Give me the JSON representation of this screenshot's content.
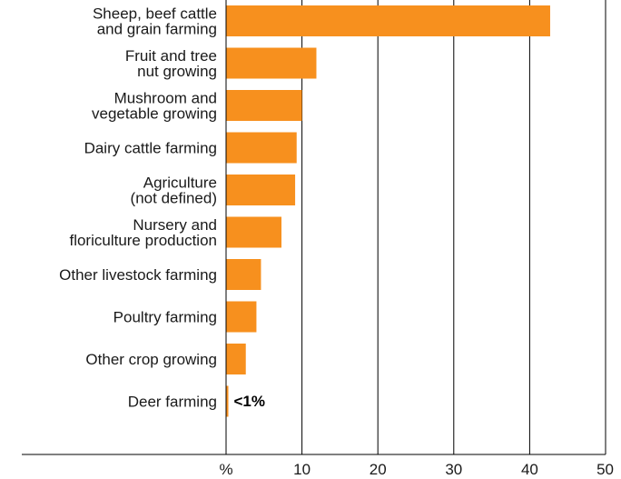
{
  "chart_data": {
    "type": "bar",
    "orientation": "horizontal",
    "categories": [
      [
        "Sheep, beef cattle",
        "and grain farming"
      ],
      [
        "Fruit and tree",
        "nut growing"
      ],
      [
        "Mushroom and",
        "vegetable growing"
      ],
      [
        "Dairy cattle farming"
      ],
      [
        "Agriculture",
        "(not defined)"
      ],
      [
        "Nursery and",
        "floriculture production"
      ],
      [
        "Other livestock farming"
      ],
      [
        "Poultry farming"
      ],
      [
        "Other crop growing"
      ],
      [
        "Deer farming"
      ]
    ],
    "values": [
      42.7,
      11.9,
      10.0,
      9.3,
      9.1,
      7.3,
      4.6,
      4.0,
      2.6,
      0.3
    ],
    "value_labels": [
      "",
      "",
      "",
      "",
      "",
      "",
      "",
      "",
      "",
      "<1%"
    ],
    "xlim": [
      0,
      50
    ],
    "xticks": [
      "%",
      "10",
      "20",
      "30",
      "40",
      "50"
    ],
    "xtick_values": [
      0,
      10,
      20,
      30,
      40,
      50
    ],
    "grid": "vertical",
    "bar_color": "#f7901e",
    "title": "",
    "xlabel": "",
    "ylabel": ""
  }
}
